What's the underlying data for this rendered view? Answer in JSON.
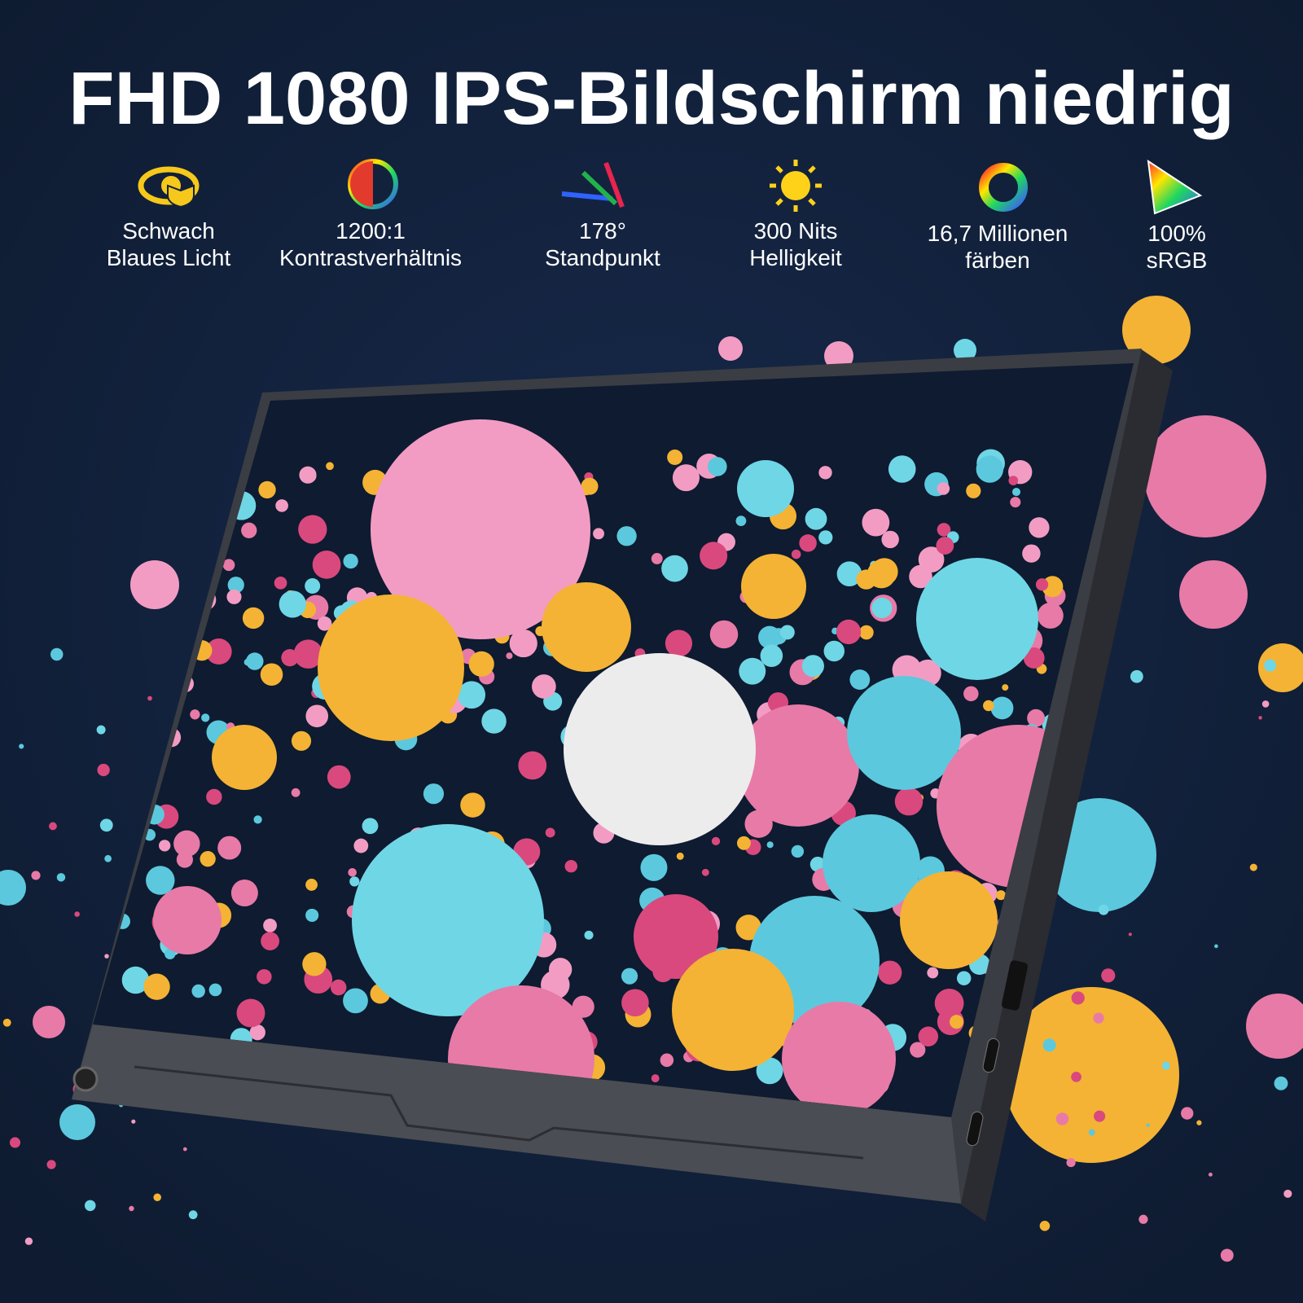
{
  "header": {
    "title": "FHD 1080 IPS-Bildschirm niedrig"
  },
  "features": [
    {
      "lines": [
        "Schwach",
        "Blaues Licht"
      ]
    },
    {
      "lines": [
        "1200:1",
        "Kontrastverhältnis"
      ]
    },
    {
      "lines": [
        "178°",
        "Standpunkt"
      ]
    },
    {
      "lines": [
        "300 Nits",
        "Helligkeit"
      ]
    },
    {
      "lines": [
        "16,7 Millionen",
        "färben"
      ]
    },
    {
      "lines": [
        "100%",
        "sRGB"
      ]
    }
  ]
}
